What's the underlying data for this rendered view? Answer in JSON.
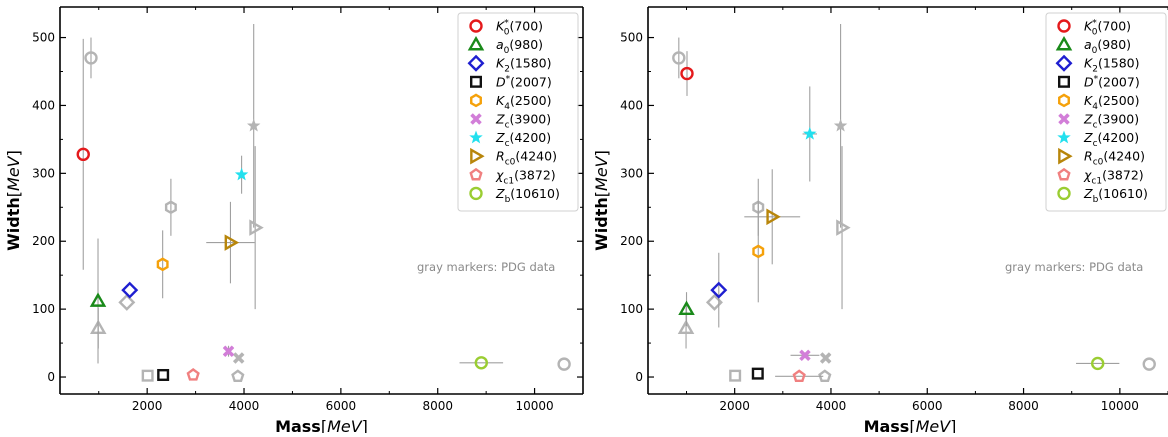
{
  "chart_data": [
    {
      "type": "scatter",
      "title": "",
      "xlabel": {
        "bold": "Mass",
        "unit": "MeV"
      },
      "ylabel": {
        "bold": "Width",
        "unit": "MeV"
      },
      "xlim": [
        200,
        11000
      ],
      "ylim": [
        -25,
        545
      ],
      "xticks": [
        2000,
        4000,
        6000,
        8000,
        10000
      ],
      "yticks": [
        0,
        100,
        200,
        300,
        400,
        500
      ],
      "annotation": "gray markers: PDG data",
      "legend_position": "top-right",
      "series": [
        {
          "base": "K",
          "sub": "0",
          "sup": "*",
          "mass": "(700)",
          "marker": "circle",
          "color": "#e41a1c",
          "x": 680,
          "y": 328,
          "xerr": [
            0,
            0
          ],
          "yerr": [
            170,
            170
          ]
        },
        {
          "base": "a",
          "sub": "0",
          "sup": "",
          "mass": "(980)",
          "marker": "triangle",
          "color": "#1a8a1a",
          "x": 985,
          "y": 112,
          "xerr": [
            0,
            0
          ],
          "yerr": [
            92,
            92
          ]
        },
        {
          "base": "K",
          "sub": "2",
          "sup": "",
          "mass": "(1580)",
          "marker": "diamond",
          "color": "#1f1fd0",
          "x": 1640,
          "y": 128,
          "xerr": [
            0,
            0
          ],
          "yerr": [
            0,
            0
          ]
        },
        {
          "base": "D",
          "sub": "",
          "sup": "*",
          "mass": "(2007)",
          "marker": "square",
          "color": "#111111",
          "x": 2330,
          "y": 3,
          "xerr": [
            0,
            0
          ],
          "yerr": [
            0,
            0
          ]
        },
        {
          "base": "K",
          "sub": "4",
          "sup": "",
          "mass": "(2500)",
          "marker": "hexagon",
          "color": "#f5a10a",
          "x": 2320,
          "y": 166,
          "xerr": [
            0,
            0
          ],
          "yerr": [
            50,
            50
          ]
        },
        {
          "base": "Z",
          "sub": "c",
          "sup": "",
          "mass": "(3900)",
          "marker": "x",
          "color": "#d27ed8",
          "x": 3680,
          "y": 38,
          "xerr": [
            0,
            0
          ],
          "yerr": [
            8,
            8
          ]
        },
        {
          "base": "Z",
          "sub": "c",
          "sup": "",
          "mass": "(4200)",
          "marker": "star",
          "color": "#22e0ee",
          "x": 3950,
          "y": 298,
          "xerr": [
            0,
            0
          ],
          "yerr": [
            28,
            28
          ]
        },
        {
          "base": "R",
          "sub": "c0",
          "sup": "",
          "mass": "(4240)",
          "marker": "triangle-right",
          "color": "#b8860b",
          "x": 3720,
          "y": 198,
          "xerr": [
            500,
            500
          ],
          "yerr": [
            60,
            60
          ]
        },
        {
          "base": "χ",
          "sub": "c1",
          "sup": "",
          "mass": "(3872)",
          "marker": "pentagon",
          "color": "#f08080",
          "x": 2950,
          "y": 3,
          "xerr": [
            0,
            0
          ],
          "yerr": [
            0,
            0
          ]
        },
        {
          "base": "Z",
          "sub": "b",
          "sup": "",
          "mass": "(10610)",
          "marker": "circle",
          "color": "#9acd32",
          "x": 8900,
          "y": 21,
          "xerr": [
            450,
            450
          ],
          "yerr": [
            0,
            0
          ]
        }
      ],
      "pdg_points": [
        {
          "marker": "circle",
          "x": 840,
          "y": 470,
          "xerr": [
            0,
            0
          ],
          "yerr": [
            30,
            30
          ]
        },
        {
          "marker": "triangle",
          "x": 990,
          "y": 72,
          "xerr": [
            0,
            0
          ],
          "yerr": [
            30,
            30
          ]
        },
        {
          "marker": "diamond",
          "x": 1580,
          "y": 110,
          "xerr": [
            0,
            0
          ],
          "yerr": [
            0,
            0
          ]
        },
        {
          "marker": "square",
          "x": 2010,
          "y": 2,
          "xerr": [
            0,
            0
          ],
          "yerr": [
            0,
            0
          ]
        },
        {
          "marker": "hexagon",
          "x": 2490,
          "y": 250,
          "xerr": [
            0,
            0
          ],
          "yerr": [
            42,
            42
          ]
        },
        {
          "marker": "x",
          "x": 3890,
          "y": 28,
          "xerr": [
            0,
            0
          ],
          "yerr": [
            0,
            0
          ]
        },
        {
          "marker": "star",
          "x": 4200,
          "y": 370,
          "xerr": [
            0,
            0
          ],
          "yerr": [
            150,
            150
          ]
        },
        {
          "marker": "triangle-right",
          "x": 4230,
          "y": 220,
          "xerr": [
            0,
            0
          ],
          "yerr": [
            120,
            120
          ]
        },
        {
          "marker": "pentagon",
          "x": 3872,
          "y": 1,
          "xerr": [
            0,
            0
          ],
          "yerr": [
            0,
            0
          ]
        },
        {
          "marker": "circle",
          "x": 10610,
          "y": 19,
          "xerr": [
            0,
            0
          ],
          "yerr": [
            0,
            0
          ]
        }
      ]
    },
    {
      "type": "scatter",
      "title": "",
      "xlabel": {
        "bold": "Mass",
        "unit": "MeV"
      },
      "ylabel": {
        "bold": "Width",
        "unit": "MeV"
      },
      "xlim": [
        200,
        11000
      ],
      "ylim": [
        -25,
        545
      ],
      "xticks": [
        2000,
        4000,
        6000,
        8000,
        10000
      ],
      "yticks": [
        0,
        100,
        200,
        300,
        400,
        500
      ],
      "annotation": "gray markers: PDG data",
      "legend_position": "top-right",
      "series": [
        {
          "base": "K",
          "sub": "0",
          "sup": "*",
          "mass": "(700)",
          "marker": "circle",
          "color": "#e41a1c",
          "x": 1010,
          "y": 447,
          "xerr": [
            0,
            0
          ],
          "yerr": [
            33,
            33
          ]
        },
        {
          "base": "a",
          "sub": "0",
          "sup": "",
          "mass": "(980)",
          "marker": "triangle",
          "color": "#1a8a1a",
          "x": 1000,
          "y": 100,
          "xerr": [
            0,
            0
          ],
          "yerr": [
            25,
            25
          ]
        },
        {
          "base": "K",
          "sub": "2",
          "sup": "",
          "mass": "(1580)",
          "marker": "diamond",
          "color": "#1f1fd0",
          "x": 1670,
          "y": 128,
          "xerr": [
            0,
            0
          ],
          "yerr": [
            55,
            55
          ]
        },
        {
          "base": "D",
          "sub": "",
          "sup": "*",
          "mass": "(2007)",
          "marker": "square",
          "color": "#111111",
          "x": 2480,
          "y": 5,
          "xerr": [
            0,
            0
          ],
          "yerr": [
            0,
            0
          ]
        },
        {
          "base": "K",
          "sub": "4",
          "sup": "",
          "mass": "(2500)",
          "marker": "hexagon",
          "color": "#f5a10a",
          "x": 2490,
          "y": 185,
          "xerr": [
            0,
            0
          ],
          "yerr": [
            75,
            75
          ]
        },
        {
          "base": "Z",
          "sub": "c",
          "sup": "",
          "mass": "(3900)",
          "marker": "x",
          "color": "#d27ed8",
          "x": 3460,
          "y": 32,
          "xerr": [
            300,
            300
          ],
          "yerr": [
            0,
            0
          ]
        },
        {
          "base": "Z",
          "sub": "c",
          "sup": "",
          "mass": "(4200)",
          "marker": "star",
          "color": "#22e0ee",
          "x": 3560,
          "y": 358,
          "xerr": [
            150,
            150
          ],
          "yerr": [
            70,
            70
          ]
        },
        {
          "base": "R",
          "sub": "c0",
          "sup": "",
          "mass": "(4240)",
          "marker": "triangle-right",
          "color": "#b8860b",
          "x": 2780,
          "y": 236,
          "xerr": [
            580,
            580
          ],
          "yerr": [
            70,
            70
          ]
        },
        {
          "base": "χ",
          "sub": "c1",
          "sup": "",
          "mass": "(3872)",
          "marker": "pentagon",
          "color": "#f08080",
          "x": 3340,
          "y": 1,
          "xerr": [
            500,
            500
          ],
          "yerr": [
            0,
            0
          ]
        },
        {
          "base": "Z",
          "sub": "b",
          "sup": "",
          "mass": "(10610)",
          "marker": "circle",
          "color": "#9acd32",
          "x": 9540,
          "y": 20,
          "xerr": [
            450,
            450
          ],
          "yerr": [
            0,
            0
          ]
        }
      ],
      "pdg_points": [
        {
          "marker": "circle",
          "x": 840,
          "y": 470,
          "xerr": [
            0,
            0
          ],
          "yerr": [
            30,
            30
          ]
        },
        {
          "marker": "triangle",
          "x": 990,
          "y": 72,
          "xerr": [
            0,
            0
          ],
          "yerr": [
            30,
            30
          ]
        },
        {
          "marker": "diamond",
          "x": 1580,
          "y": 110,
          "xerr": [
            0,
            0
          ],
          "yerr": [
            0,
            0
          ]
        },
        {
          "marker": "square",
          "x": 2010,
          "y": 2,
          "xerr": [
            0,
            0
          ],
          "yerr": [
            0,
            0
          ]
        },
        {
          "marker": "hexagon",
          "x": 2490,
          "y": 250,
          "xerr": [
            0,
            0
          ],
          "yerr": [
            42,
            42
          ]
        },
        {
          "marker": "x",
          "x": 3890,
          "y": 28,
          "xerr": [
            0,
            0
          ],
          "yerr": [
            0,
            0
          ]
        },
        {
          "marker": "star",
          "x": 4200,
          "y": 370,
          "xerr": [
            0,
            0
          ],
          "yerr": [
            150,
            150
          ]
        },
        {
          "marker": "triangle-right",
          "x": 4230,
          "y": 220,
          "xerr": [
            0,
            0
          ],
          "yerr": [
            120,
            120
          ]
        },
        {
          "marker": "pentagon",
          "x": 3872,
          "y": 1,
          "xerr": [
            0,
            0
          ],
          "yerr": [
            0,
            0
          ]
        },
        {
          "marker": "circle",
          "x": 10610,
          "y": 19,
          "xerr": [
            0,
            0
          ],
          "yerr": [
            0,
            0
          ]
        }
      ]
    }
  ],
  "style": {
    "pdg_color": "#b4b4b4",
    "errorbar_color": "#a0a0a0",
    "annotation_color": "#8a8a8a",
    "axis_color": "#000000"
  }
}
